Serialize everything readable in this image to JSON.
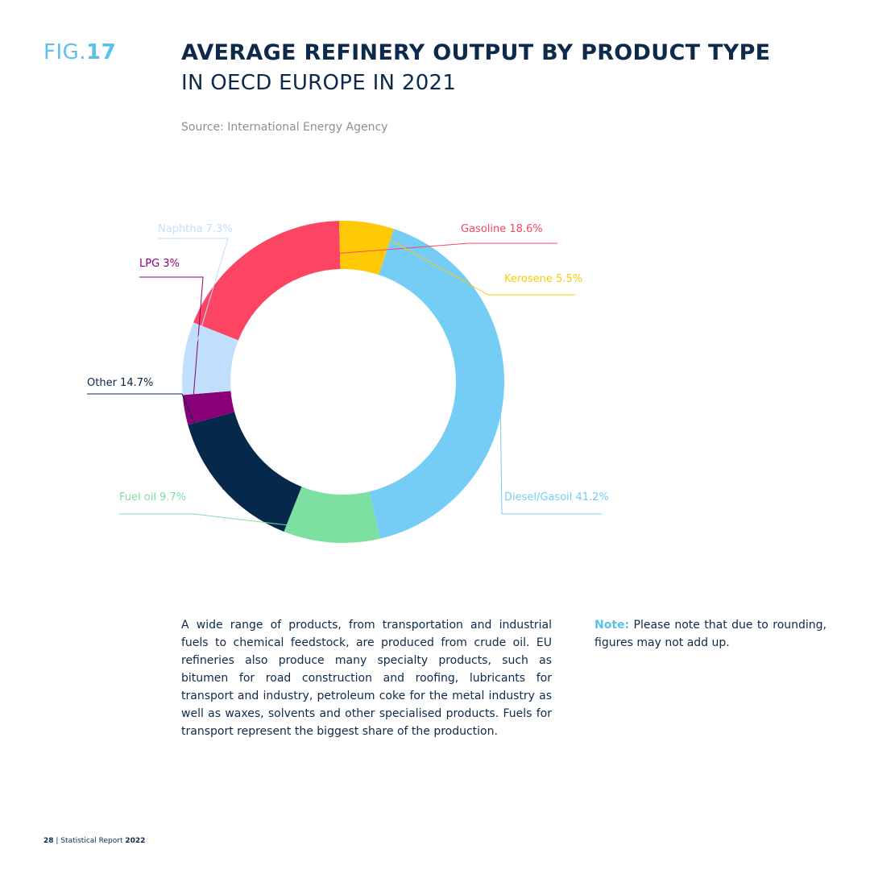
{
  "header": {
    "fig_prefix": "FIG.",
    "fig_number": "17",
    "title": "AVERAGE REFINERY OUTPUT BY PRODUCT TYPE",
    "subtitle": "IN OECD EUROPE IN 2021",
    "source": "Source: International Energy Agency"
  },
  "chart_data": {
    "type": "pie",
    "donut": true,
    "categories": [
      "Gasoline",
      "Kerosene",
      "Diesel/Gasoil",
      "Fuel oil",
      "Other",
      "LPG",
      "Naphtha"
    ],
    "values": [
      18.6,
      5.5,
      41.2,
      9.7,
      14.7,
      3,
      7.3
    ],
    "labels": [
      "Gasoline 18.6%",
      "Kerosene 5.5%",
      "Diesel/Gasoil 41.2%",
      "Fuel oil 9.7%",
      "Other 14.7%",
      "LPG 3%",
      "Naphtha 7.3%"
    ],
    "colors": [
      "#fc4563",
      "#ffc906",
      "#75ccf4",
      "#7ddfa0",
      "#06284b",
      "#8b0078",
      "#bfdffc"
    ]
  },
  "body": {
    "text": "A wide range of products, from transportation and industrial fuels to chemical feedstock, are produced from crude oil. EU refineries also produce many specialty products, such as bitumen for road construction and roofing, lubricants for transport and industry, petroleum coke for the metal industry as well as waxes, solvents and other specialised products. Fuels for transport represent the biggest share of the production."
  },
  "note": {
    "label": "Note:",
    "text": "Please note that due to rounding, figures may not add up."
  },
  "footer": {
    "page": "28",
    "separator": "|",
    "report": "Statistical Report",
    "year": "2022"
  }
}
